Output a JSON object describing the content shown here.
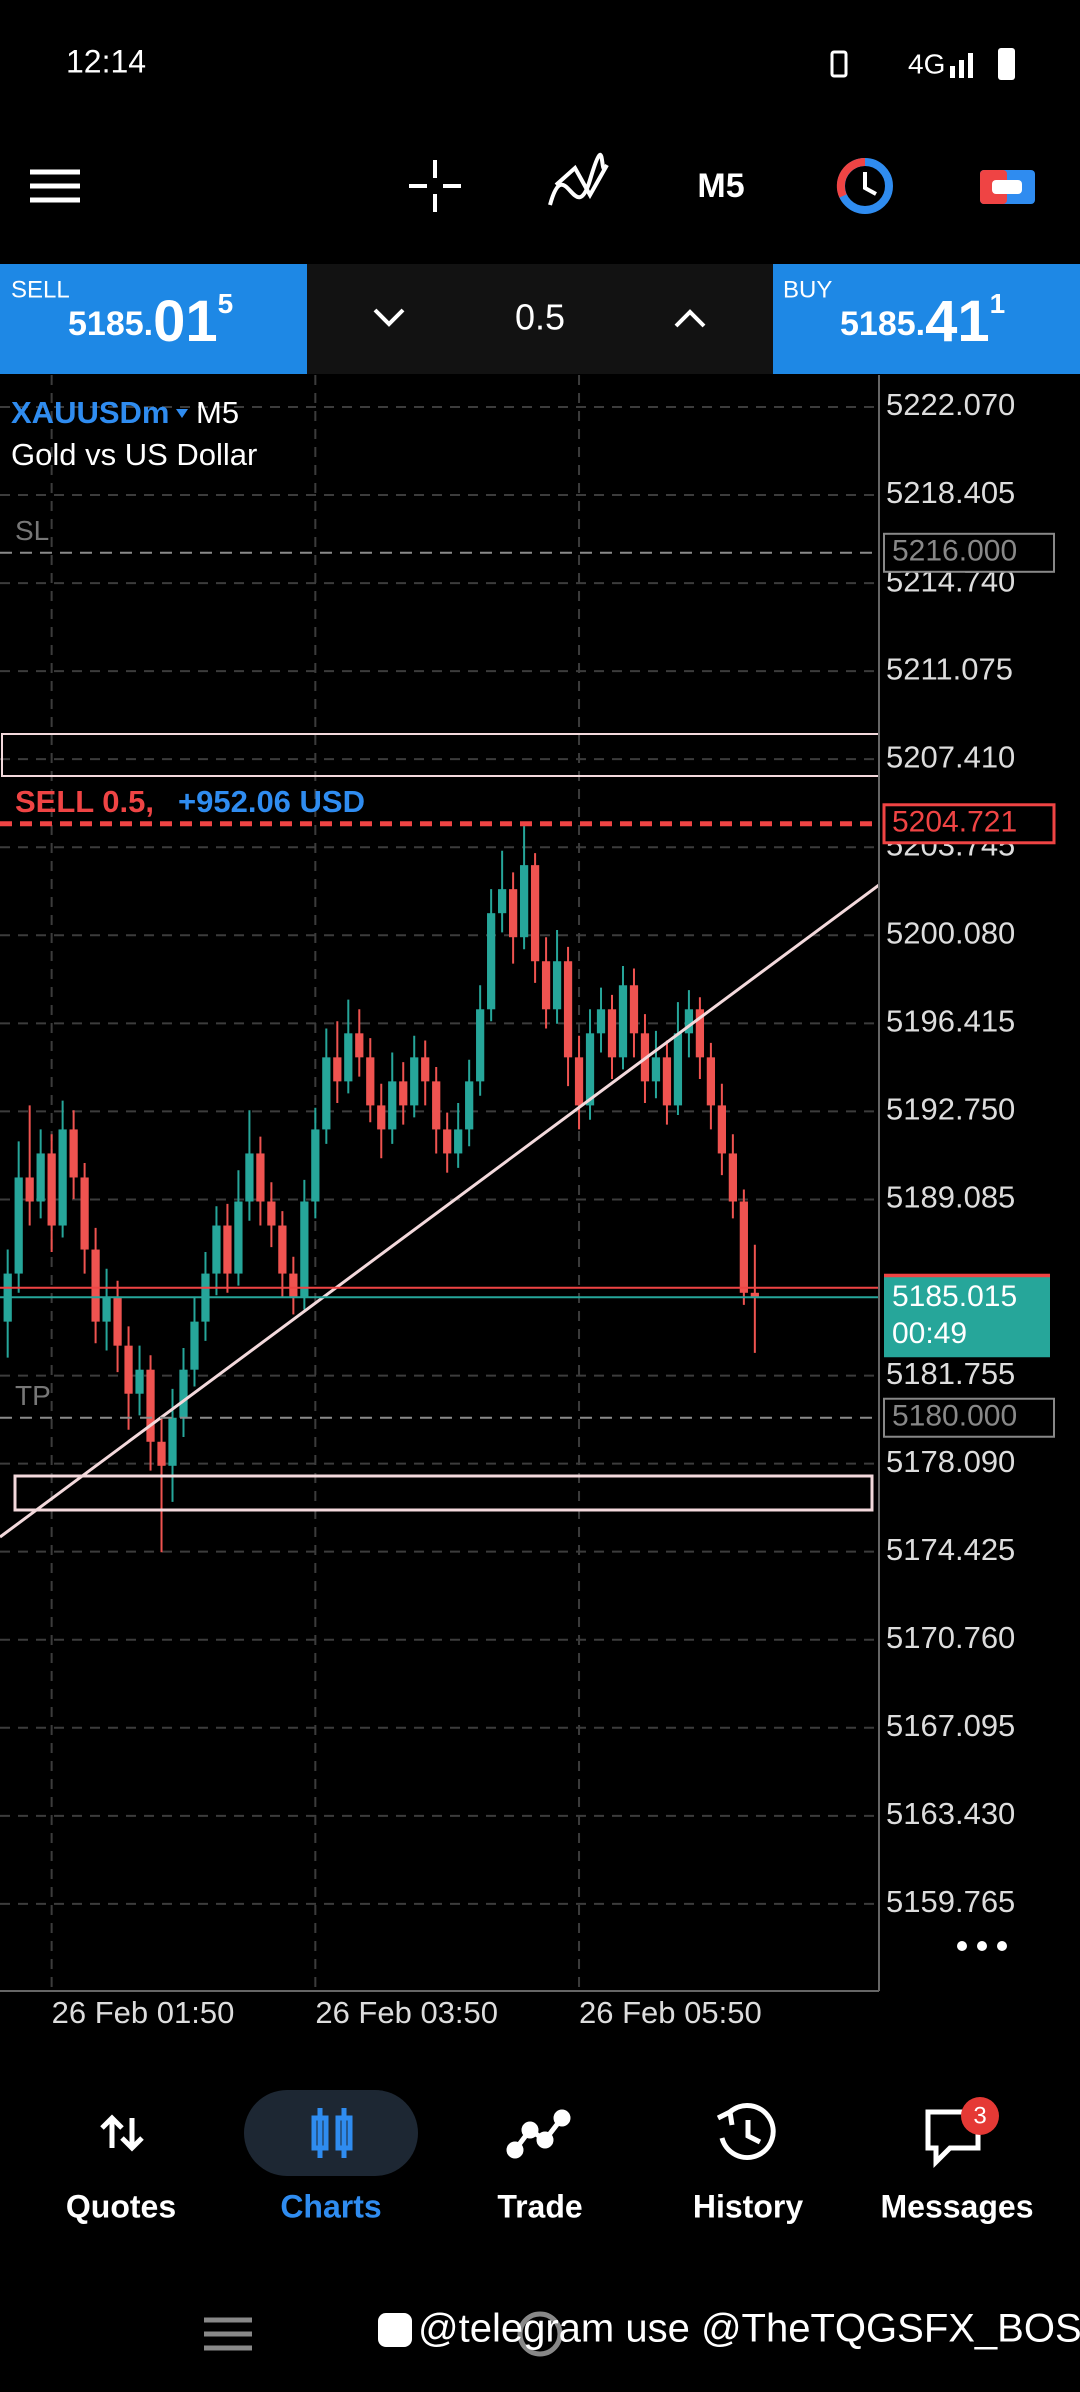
{
  "status_bar": {
    "time": "12:14",
    "network": "4G"
  },
  "toolbar": {
    "timeframe": "M5"
  },
  "trade_panel": {
    "sell": {
      "label": "SELL",
      "price_main": "5185.",
      "price_big": "01",
      "price_small": "5"
    },
    "volume": "0.5",
    "buy": {
      "label": "BUY",
      "price_main": "5185.",
      "price_big": "41",
      "price_small": "1"
    }
  },
  "chart_data": {
    "type": "candlestick",
    "symbol": "XAUUSDm",
    "timeframe": "M5",
    "description": "Gold vs US Dollar",
    "xlim": [
      -0.7,
      79.3
    ],
    "xticks": [
      {
        "value": 4,
        "label": "26 Feb 01:50"
      },
      {
        "value": 28,
        "label": "26 Feb 03:50"
      },
      {
        "value": 52,
        "label": "26 Feb 05:50"
      }
    ],
    "ylim": [
      5156.14,
      5223.4
    ],
    "yticks": [
      {
        "value": 5222.07,
        "label": "5222.070"
      },
      5218.405,
      {
        "value": 5214.74,
        "label": "5214.740"
      },
      5211.075,
      {
        "value": 5207.41,
        "label": "5207.410"
      },
      5203.745,
      {
        "value": 5200.08,
        "label": "5200.080"
      },
      5196.415,
      {
        "value": 5192.75,
        "label": "5192.750"
      },
      5189.085,
      5181.755,
      {
        "value": 5178.09,
        "label": "5178.090"
      },
      5174.425,
      {
        "value": 5170.76,
        "label": "5170.760"
      },
      5167.095,
      {
        "value": 5163.43,
        "label": "5163.430"
      },
      5159.765
    ],
    "grid": true,
    "up_color": "#26a69a",
    "down_color": "#ef5350",
    "open": [
      5184,
      5186,
      5190,
      5189,
      5191,
      5188,
      5192,
      5190,
      5187,
      5184,
      5185,
      5183,
      5181,
      5182,
      5179,
      5178,
      5180,
      5182,
      5184,
      5186,
      5188,
      5186,
      5189,
      5191,
      5189,
      5188,
      5186,
      5185,
      5189,
      5192,
      5195,
      5194,
      5196,
      5195,
      5193,
      5192,
      5194,
      5193,
      5195,
      5194,
      5192,
      5191,
      5192,
      5194,
      5197,
      5201,
      5202,
      5200,
      5203,
      5199,
      5197,
      5199,
      5195,
      5193,
      5196,
      5197,
      5195,
      5198,
      5196,
      5194,
      5195,
      5193,
      5196,
      5197,
      5195,
      5193,
      5191,
      5189,
      5185.2
    ],
    "high": [
      5187,
      5191.5,
      5193,
      5192,
      5191.8,
      5193.2,
      5192.8,
      5190.6,
      5187.9,
      5186.2,
      5185.7,
      5183.8,
      5183,
      5182.6,
      5180,
      5181.2,
      5182.9,
      5185,
      5186.9,
      5188.8,
      5188.9,
      5190.3,
      5192.8,
      5191.7,
      5189.8,
      5188.6,
      5186.7,
      5189.9,
      5192.9,
      5196.2,
      5196.5,
      5197.4,
      5197,
      5195.8,
      5193.9,
      5195.2,
      5194.8,
      5195.9,
      5195.7,
      5194.6,
      5192.7,
      5193.1,
      5194.9,
      5198,
      5202,
      5203.6,
      5202.7,
      5204.7,
      5203.5,
      5200,
      5200.3,
      5199.6,
      5195.9,
      5197,
      5197.9,
      5197.6,
      5198.8,
      5198.7,
      5196.8,
      5196.1,
      5195.7,
      5197.3,
      5197.8,
      5197.5,
      5195.6,
      5193.9,
      5191.8,
      5189.5,
      5187.2
    ],
    "low": [
      5182.5,
      5185.2,
      5188,
      5188.3,
      5186.9,
      5187.5,
      5189.1,
      5186,
      5183.1,
      5182.8,
      5181.9,
      5179.5,
      5180.1,
      5177.8,
      5174.4,
      5176.5,
      5179.2,
      5181.3,
      5183.2,
      5185.1,
      5185.2,
      5185.5,
      5188.2,
      5188,
      5187.1,
      5185,
      5184.3,
      5184.5,
      5188.3,
      5191.4,
      5193.1,
      5193.5,
      5194.2,
      5192.3,
      5190.8,
      5191.4,
      5192.2,
      5192.5,
      5193,
      5191,
      5190.2,
      5190.4,
      5191.3,
      5193.4,
      5196.5,
      5200.2,
      5198.9,
      5199.5,
      5198.1,
      5196.2,
      5196.4,
      5193.8,
      5192,
      5192.4,
      5195.2,
      5194.1,
      5194.5,
      5195,
      5193.1,
      5193.3,
      5192.2,
      5192.6,
      5195,
      5194.1,
      5192,
      5190.1,
      5188.3,
      5184.7,
      5182.7
    ],
    "close": [
      5186,
      5190,
      5189,
      5191,
      5188,
      5192,
      5190,
      5187,
      5184,
      5185,
      5183,
      5181,
      5182,
      5179,
      5178,
      5180,
      5182,
      5184,
      5186,
      5188,
      5186,
      5189,
      5191,
      5189,
      5188,
      5186,
      5185,
      5189,
      5192,
      5195,
      5194,
      5196,
      5195,
      5193,
      5192,
      5194,
      5193,
      5195,
      5194,
      5192,
      5191,
      5192,
      5194,
      5197,
      5201,
      5202,
      5200,
      5203,
      5199,
      5197,
      5199,
      5195,
      5193,
      5196,
      5197,
      5195,
      5198,
      5196,
      5194,
      5195,
      5193,
      5196,
      5197,
      5195,
      5193,
      5191,
      5189,
      5185.2,
      5185.015
    ],
    "sl": {
      "label": "SL",
      "value": 5216,
      "value_label": "5216.000"
    },
    "tp": {
      "label": "TP",
      "value": 5180,
      "value_label": "5180.000"
    },
    "position": {
      "label": "SELL 0.5,",
      "profit": "+952.06 USD",
      "value": 5204.721
    },
    "ask": {
      "value": 5185.411
    },
    "bid": {
      "value": 5185.015,
      "countdown": "00:49"
    }
  },
  "bottom_nav": {
    "items": [
      "Quotes",
      "Charts",
      "Trade",
      "History",
      "Messages"
    ],
    "active": 1,
    "badge": "3"
  },
  "watermark": "@telegram use @TheTQGSFX_BOSS"
}
